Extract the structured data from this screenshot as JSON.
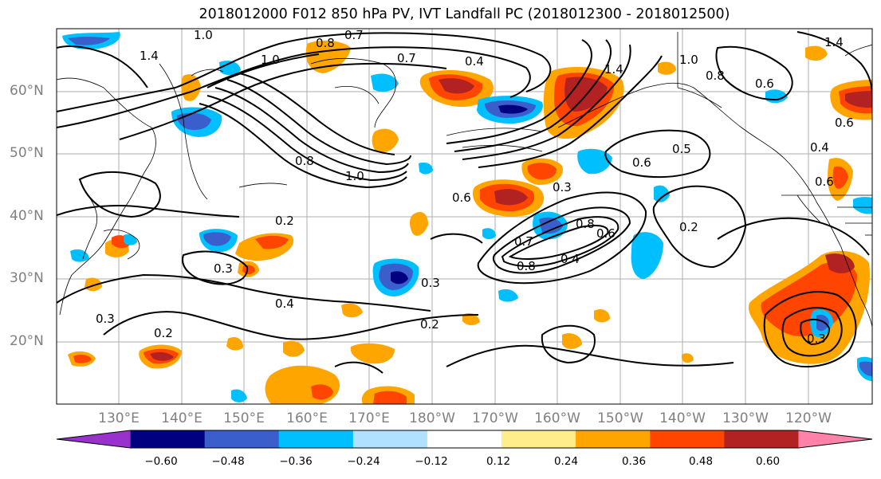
{
  "title": "2018012000 F012 850 hPa PV, IVT Landfall PC (2018012300 - 2018012500)",
  "lat_labels": [
    "60°N",
    "50°N",
    "40°N",
    "30°N",
    "20°N"
  ],
  "lon_labels": [
    "130°E",
    "140°E",
    "150°E",
    "160°E",
    "170°E",
    "180°W",
    "170°W",
    "160°W",
    "150°W",
    "140°W",
    "130°W",
    "120°W"
  ],
  "colorbar": {
    "colors": [
      "#9932cc",
      "#000080",
      "#3a5fcd",
      "#00bfff",
      "#b0e2ff",
      "#ffffff",
      "#ffec8b",
      "#ffa500",
      "#ff4500",
      "#b22222",
      "#ff82ab"
    ],
    "ticks": [
      "−0.60",
      "−0.48",
      "−0.36",
      "−0.24",
      "−0.12",
      "0.12",
      "0.24",
      "0.36",
      "0.48",
      "0.60"
    ]
  },
  "contour_labels": [
    "0.8",
    "0.7",
    "1.0",
    "0.7",
    "0.4",
    "1.4",
    "1.0",
    "0.8",
    "0.6",
    "1.4",
    "1.4",
    "1.0",
    "0.8",
    "1.0",
    "0.6",
    "0.5",
    "0.6",
    "0.3",
    "0.6",
    "0.8",
    "0.7",
    "0.8",
    "0.4",
    "0.6",
    "0.2",
    "0.2",
    "0.3",
    "0.3",
    "0.4",
    "0.2",
    "0.2",
    "0.3",
    "0.3",
    "0.6",
    "0.4"
  ],
  "positive_anomaly_color_low": "#ffa500",
  "positive_anomaly_color_mid": "#ff4500",
  "positive_anomaly_color_high": "#b22222",
  "negative_anomaly_color_low": "#00bfff",
  "negative_anomaly_color_high": "#3a5fcd"
}
